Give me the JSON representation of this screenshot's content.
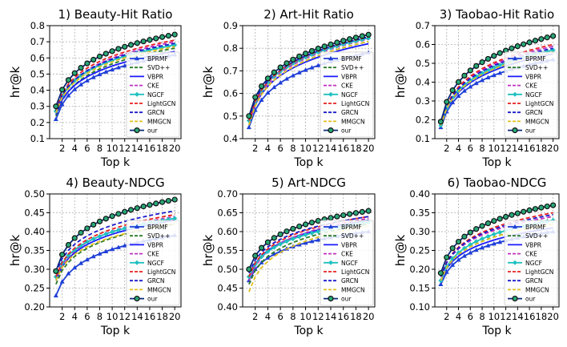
{
  "figure": {
    "xlabel": "Top k"
  },
  "methods": [
    {
      "name": "BPRMF",
      "color": "#1f3fd8",
      "dash": "",
      "marker": "triangle"
    },
    {
      "name": "SVD++",
      "color": "#2a7a2a",
      "dash": "5,3",
      "marker": "none"
    },
    {
      "name": "VBPR",
      "color": "#1a1aff",
      "dash": "",
      "marker": "none"
    },
    {
      "name": "CKE",
      "color": "#c030c0",
      "dash": "5,3",
      "marker": "none"
    },
    {
      "name": "NGCF",
      "color": "#20c0c0",
      "dash": "",
      "marker": "diamond"
    },
    {
      "name": "LightGCN",
      "color": "#e82020",
      "dash": "5,3",
      "marker": "none"
    },
    {
      "name": "GRCN",
      "color": "#1a1acc",
      "dash": "5,3",
      "marker": "none"
    },
    {
      "name": "MMGCN",
      "color": "#e0c020",
      "dash": "5,3",
      "marker": "none"
    },
    {
      "name": "our",
      "color": "#0a2a7a",
      "dash": "",
      "marker": "circle"
    }
  ],
  "chart_data": [
    {
      "type": "line",
      "title": "1) Beauty-Hit Ratio",
      "xlabel": "Top k",
      "ylabel": "hr@k",
      "x": [
        1,
        2,
        3,
        4,
        5,
        6,
        7,
        8,
        9,
        10,
        11,
        12,
        13,
        14,
        15,
        16,
        17,
        18,
        19,
        20
      ],
      "xticks": [
        2,
        4,
        6,
        8,
        10,
        12,
        14,
        16,
        18,
        20
      ],
      "ylim": [
        0.1,
        0.8
      ],
      "yticks": [
        "0.1",
        "0.2",
        "0.3",
        "0.4",
        "0.5",
        "0.6",
        "0.7",
        "0.8"
      ],
      "series": [
        {
          "name": "BPRMF",
          "start": 0.22,
          "end": 0.62
        },
        {
          "name": "SVD++",
          "start": 0.24,
          "end": 0.66
        },
        {
          "name": "VBPR",
          "start": 0.25,
          "end": 0.64
        },
        {
          "name": "CKE",
          "start": 0.26,
          "end": 0.7
        },
        {
          "name": "NGCF",
          "start": 0.27,
          "end": 0.68
        },
        {
          "name": "LightGCN",
          "start": 0.28,
          "end": 0.71
        },
        {
          "name": "GRCN",
          "start": 0.27,
          "end": 0.69
        },
        {
          "name": "MMGCN",
          "start": 0.26,
          "end": 0.67
        },
        {
          "name": "our",
          "start": 0.3,
          "end": 0.745
        }
      ]
    },
    {
      "type": "line",
      "title": "2) Art-Hit Ratio",
      "xlabel": "Top k",
      "ylabel": "hr@k",
      "x": [
        1,
        2,
        3,
        4,
        5,
        6,
        7,
        8,
        9,
        10,
        11,
        12,
        13,
        14,
        15,
        16,
        17,
        18,
        19,
        20
      ],
      "xticks": [
        2,
        4,
        6,
        8,
        10,
        12,
        14,
        16,
        18,
        20
      ],
      "ylim": [
        0.4,
        0.9
      ],
      "yticks": [
        "0.4",
        "0.5",
        "0.6",
        "0.7",
        "0.8",
        "0.9"
      ],
      "series": [
        {
          "name": "BPRMF",
          "start": 0.45,
          "end": 0.78
        },
        {
          "name": "SVD++",
          "start": 0.46,
          "end": 0.83
        },
        {
          "name": "VBPR",
          "start": 0.47,
          "end": 0.82
        },
        {
          "name": "CKE",
          "start": 0.47,
          "end": 0.84
        },
        {
          "name": "NGCF",
          "start": 0.48,
          "end": 0.845
        },
        {
          "name": "LightGCN",
          "start": 0.48,
          "end": 0.85
        },
        {
          "name": "GRCN",
          "start": 0.49,
          "end": 0.85
        },
        {
          "name": "MMGCN",
          "start": 0.46,
          "end": 0.83
        },
        {
          "name": "our",
          "start": 0.5,
          "end": 0.86
        }
      ]
    },
    {
      "type": "line",
      "title": "3) Taobao-Hit Ratio",
      "xlabel": "Top k",
      "ylabel": "hr@k",
      "x": [
        1,
        2,
        3,
        4,
        5,
        6,
        7,
        8,
        9,
        10,
        11,
        12,
        13,
        14,
        15,
        16,
        17,
        18,
        19,
        20
      ],
      "xticks": [
        2,
        4,
        6,
        8,
        10,
        12,
        14,
        16,
        18,
        20
      ],
      "ylim": [
        0.1,
        0.7
      ],
      "yticks": [
        "0.1",
        "0.2",
        "0.3",
        "0.4",
        "0.5",
        "0.6",
        "0.7"
      ],
      "series": [
        {
          "name": "BPRMF",
          "start": 0.16,
          "end": 0.52
        },
        {
          "name": "SVD++",
          "start": 0.17,
          "end": 0.56
        },
        {
          "name": "VBPR",
          "start": 0.17,
          "end": 0.55
        },
        {
          "name": "CKE",
          "start": 0.18,
          "end": 0.59
        },
        {
          "name": "NGCF",
          "start": 0.17,
          "end": 0.57
        },
        {
          "name": "LightGCN",
          "start": 0.18,
          "end": 0.6
        },
        {
          "name": "GRCN",
          "start": 0.18,
          "end": 0.58
        },
        {
          "name": "MMGCN",
          "start": 0.17,
          "end": 0.56
        },
        {
          "name": "our",
          "start": 0.19,
          "end": 0.645
        }
      ]
    },
    {
      "type": "line",
      "title": "4) Beauty-NDCG",
      "xlabel": "Top k",
      "ylabel": "hr@k",
      "x": [
        1,
        2,
        3,
        4,
        5,
        6,
        7,
        8,
        9,
        10,
        11,
        12,
        13,
        14,
        15,
        16,
        17,
        18,
        19,
        20
      ],
      "xticks": [
        2,
        4,
        6,
        8,
        10,
        12,
        14,
        16,
        18,
        20
      ],
      "ylim": [
        0.2,
        0.5
      ],
      "yticks": [
        "0.20",
        "0.25",
        "0.30",
        "0.35",
        "0.40",
        "0.45",
        "0.50"
      ],
      "series": [
        {
          "name": "BPRMF",
          "start": 0.23,
          "end": 0.39
        },
        {
          "name": "SVD++",
          "start": 0.26,
          "end": 0.42
        },
        {
          "name": "VBPR",
          "start": 0.27,
          "end": 0.43
        },
        {
          "name": "CKE",
          "start": 0.27,
          "end": 0.44
        },
        {
          "name": "NGCF",
          "start": 0.28,
          "end": 0.435
        },
        {
          "name": "LightGCN",
          "start": 0.28,
          "end": 0.445
        },
        {
          "name": "GRCN",
          "start": 0.29,
          "end": 0.455
        },
        {
          "name": "MMGCN",
          "start": 0.27,
          "end": 0.42
        },
        {
          "name": "our",
          "start": 0.295,
          "end": 0.485
        }
      ]
    },
    {
      "type": "line",
      "title": "5) Art-NDCG",
      "xlabel": "Top k",
      "ylabel": "hr@k",
      "x": [
        1,
        2,
        3,
        4,
        5,
        6,
        7,
        8,
        9,
        10,
        11,
        12,
        13,
        14,
        15,
        16,
        17,
        18,
        19,
        20
      ],
      "xticks": [
        2,
        4,
        6,
        8,
        10,
        12,
        14,
        16,
        18,
        20
      ],
      "ylim": [
        0.4,
        0.7
      ],
      "yticks": [
        "0.40",
        "0.45",
        "0.50",
        "0.55",
        "0.60",
        "0.65",
        "0.70"
      ],
      "series": [
        {
          "name": "BPRMF",
          "start": 0.47,
          "end": 0.6
        },
        {
          "name": "SVD++",
          "start": 0.46,
          "end": 0.62
        },
        {
          "name": "VBPR",
          "start": 0.48,
          "end": 0.63
        },
        {
          "name": "CKE",
          "start": 0.47,
          "end": 0.635
        },
        {
          "name": "NGCF",
          "start": 0.48,
          "end": 0.625
        },
        {
          "name": "LightGCN",
          "start": 0.48,
          "end": 0.64
        },
        {
          "name": "GRCN",
          "start": 0.49,
          "end": 0.64
        },
        {
          "name": "MMGCN",
          "start": 0.44,
          "end": 0.615
        },
        {
          "name": "our",
          "start": 0.5,
          "end": 0.655
        }
      ]
    },
    {
      "type": "line",
      "title": "6) Taobao-NDCG",
      "xlabel": "Top k",
      "ylabel": "hr@k",
      "x": [
        1,
        2,
        3,
        4,
        5,
        6,
        7,
        8,
        9,
        10,
        11,
        12,
        13,
        14,
        15,
        16,
        17,
        18,
        19,
        20
      ],
      "xticks": [
        2,
        4,
        6,
        8,
        10,
        12,
        14,
        16,
        18,
        20
      ],
      "ylim": [
        0.1,
        0.4
      ],
      "yticks": [
        "0.10",
        "0.15",
        "0.20",
        "0.25",
        "0.30",
        "0.35",
        "0.40"
      ],
      "series": [
        {
          "name": "BPRMF",
          "start": 0.16,
          "end": 0.3
        },
        {
          "name": "SVD++",
          "start": 0.17,
          "end": 0.32
        },
        {
          "name": "VBPR",
          "start": 0.17,
          "end": 0.31
        },
        {
          "name": "CKE",
          "start": 0.18,
          "end": 0.34
        },
        {
          "name": "NGCF",
          "start": 0.17,
          "end": 0.33
        },
        {
          "name": "LightGCN",
          "start": 0.18,
          "end": 0.35
        },
        {
          "name": "GRCN",
          "start": 0.18,
          "end": 0.345
        },
        {
          "name": "MMGCN",
          "start": 0.17,
          "end": 0.32
        },
        {
          "name": "our",
          "start": 0.19,
          "end": 0.37
        }
      ]
    }
  ]
}
